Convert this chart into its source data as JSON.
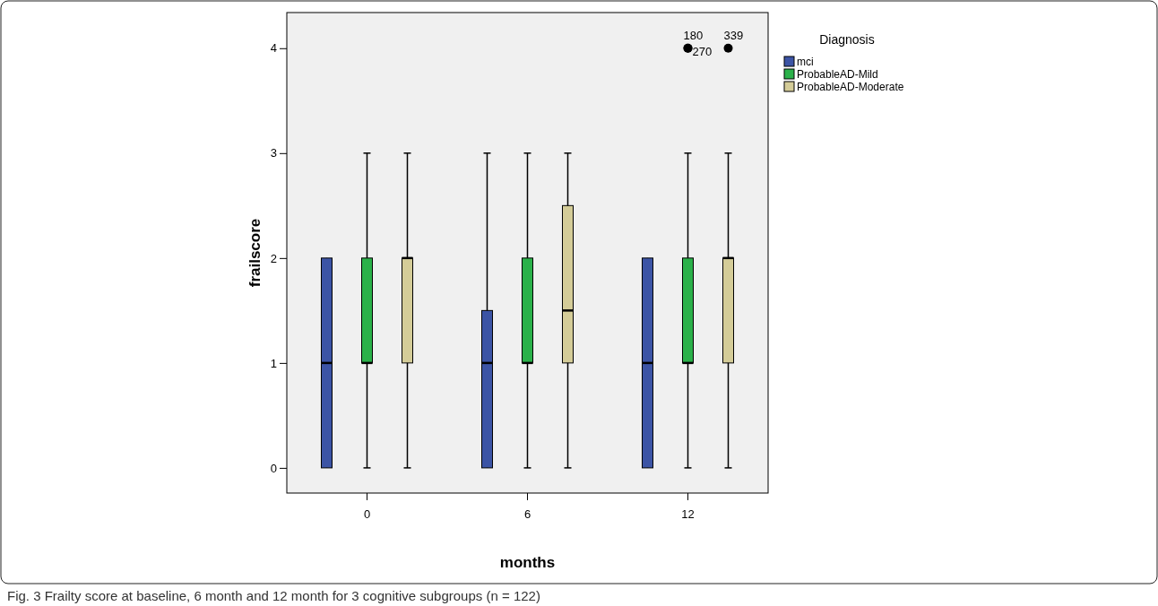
{
  "chart_data": {
    "type": "box",
    "xlabel": "months",
    "ylabel": "frailscore",
    "legend_title": "Diagnosis",
    "legend": "top right",
    "grid": false,
    "categories": [
      "0",
      "6",
      "12"
    ],
    "ylim": [
      -0.24,
      4.34
    ],
    "yticks": [
      0,
      1,
      2,
      3,
      4
    ],
    "series": [
      {
        "name": "mci",
        "color": "#3c54a5",
        "boxes": [
          {
            "low": 0,
            "q1": 0,
            "median": 1,
            "q3": 2,
            "high": 2
          },
          {
            "low": 0,
            "q1": 0,
            "median": 1,
            "q3": 1.5,
            "high": 3
          },
          {
            "low": 0,
            "q1": 0,
            "median": 1,
            "q3": 2,
            "high": 2
          }
        ]
      },
      {
        "name": "ProbableAD-Mild",
        "color": "#2bb14a",
        "boxes": [
          {
            "low": 0,
            "q1": 1,
            "median": 1,
            "q3": 2,
            "high": 3
          },
          {
            "low": 0,
            "q1": 1,
            "median": 1,
            "q3": 2,
            "high": 3
          },
          {
            "low": 0,
            "q1": 1,
            "median": 1,
            "q3": 2,
            "high": 3,
            "outliers": [
              4,
              4
            ]
          }
        ]
      },
      {
        "name": "ProbableAD-Moderate",
        "color": "#d4cc98",
        "boxes": [
          {
            "low": 0,
            "q1": 1,
            "median": 2,
            "q3": 2,
            "high": 3
          },
          {
            "low": 0,
            "q1": 1,
            "median": 1.5,
            "q3": 2.5,
            "high": 3
          },
          {
            "low": 0,
            "q1": 1,
            "median": 2,
            "q3": 2,
            "high": 3,
            "outliers": [
              4
            ]
          }
        ]
      }
    ],
    "annotations": [
      "180",
      "270",
      "339",
      "Fig. 3 Frailty score at baseline, 6 month and 12 month for 3 cognitive subgroups (n = 122)"
    ]
  }
}
